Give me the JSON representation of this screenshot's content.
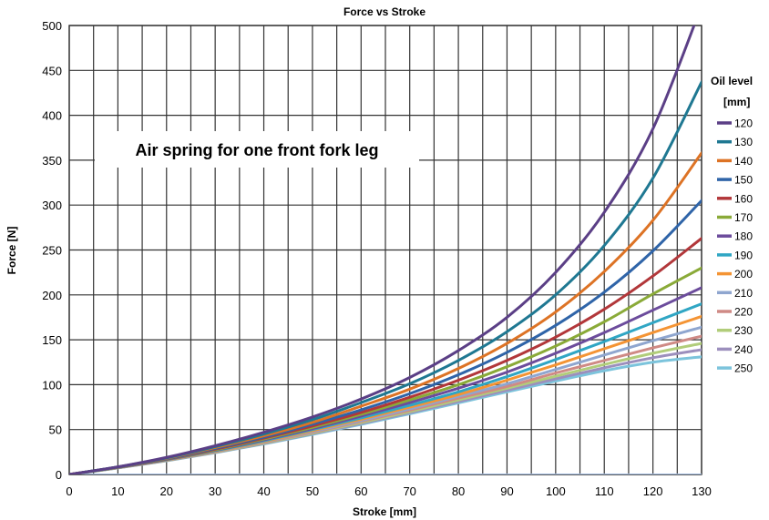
{
  "chart_data": {
    "type": "line",
    "title": "Force vs Stroke",
    "xlabel": "Stroke [mm]",
    "ylabel": "Force [N]",
    "xlim": [
      0,
      130
    ],
    "ylim": [
      0,
      500
    ],
    "x_ticks": [
      0,
      10,
      20,
      30,
      40,
      50,
      60,
      70,
      80,
      90,
      100,
      110,
      120,
      130
    ],
    "y_ticks": [
      0,
      50,
      100,
      150,
      200,
      250,
      300,
      350,
      400,
      450,
      500
    ],
    "grid": true,
    "legend_title": [
      "Oil level",
      "[mm]"
    ],
    "legend_position": "right",
    "annotation": "Air spring for one front fork leg",
    "x": [
      0,
      10,
      20,
      30,
      40,
      50,
      60,
      70,
      80,
      90,
      100,
      110,
      120,
      130
    ],
    "series": [
      {
        "name": "120",
        "color": "#5b3f86",
        "values": [
          0,
          8.5,
          19,
          32,
          47,
          64,
          84,
          108,
          138,
          175,
          225,
          292,
          385,
          522
        ]
      },
      {
        "name": "130",
        "color": "#1f7892",
        "values": [
          0,
          8.4,
          18.5,
          31,
          45,
          61,
          80,
          101,
          127,
          159,
          200,
          255,
          330,
          437
        ]
      },
      {
        "name": "140",
        "color": "#dd7325",
        "values": [
          0,
          8.3,
          18,
          30,
          43,
          58,
          76,
          95,
          118,
          146,
          181,
          226,
          283,
          358
        ]
      },
      {
        "name": "150",
        "color": "#2f64a8",
        "values": [
          0,
          8.2,
          17.5,
          29,
          41.5,
          56,
          72,
          90,
          111,
          136,
          166,
          203,
          249,
          305
        ]
      },
      {
        "name": "160",
        "color": "#b2373a",
        "values": [
          0,
          8.1,
          17.2,
          28.2,
          40.5,
          54,
          69,
          86,
          105,
          127,
          153,
          184,
          221,
          263
        ]
      },
      {
        "name": "170",
        "color": "#8aaa38",
        "values": [
          0,
          8.0,
          17.0,
          27.5,
          39.5,
          52.5,
          67,
          83,
          100,
          120,
          143,
          170,
          201,
          230
        ]
      },
      {
        "name": "180",
        "color": "#6c4c9c",
        "values": [
          0,
          7.9,
          16.7,
          27,
          38.5,
          51,
          65,
          80,
          96,
          114,
          135,
          158,
          183,
          208
        ]
      },
      {
        "name": "190",
        "color": "#30a6c4",
        "values": [
          0,
          7.8,
          16.5,
          26.5,
          37.5,
          50,
          63,
          77,
          92,
          109,
          128,
          148,
          169,
          190
        ]
      },
      {
        "name": "200",
        "color": "#f49434",
        "values": [
          0,
          7.7,
          16.2,
          26,
          36.8,
          48.8,
          61.5,
          75,
          89,
          105,
          122,
          140,
          158,
          176
        ]
      },
      {
        "name": "210",
        "color": "#8fa6cf",
        "values": [
          0,
          7.6,
          16.0,
          25.6,
          36.2,
          47.8,
          60,
          73,
          87,
          101,
          117,
          133,
          149,
          164
        ]
      },
      {
        "name": "220",
        "color": "#cf8a85",
        "values": [
          0,
          7.5,
          15.8,
          25.2,
          35.6,
          46.9,
          59,
          71.5,
          85,
          98,
          113,
          127,
          141,
          154
        ]
      },
      {
        "name": "230",
        "color": "#b1cd7a",
        "values": [
          0,
          7.4,
          15.6,
          24.8,
          35,
          46,
          57.8,
          70,
          83,
          96,
          109.5,
          122.5,
          135,
          146
        ]
      },
      {
        "name": "240",
        "color": "#9c8fbd",
        "values": [
          0,
          7.3,
          15.4,
          24.5,
          34.5,
          45.3,
          56.7,
          68.8,
          81.2,
          93.8,
          106.5,
          118.8,
          130,
          139
        ]
      },
      {
        "name": "250",
        "color": "#7cc4dc",
        "values": [
          0,
          7.2,
          15.2,
          24.2,
          34,
          44.6,
          55.8,
          67.6,
          79.7,
          92,
          104,
          115.5,
          125,
          131
        ]
      }
    ]
  }
}
